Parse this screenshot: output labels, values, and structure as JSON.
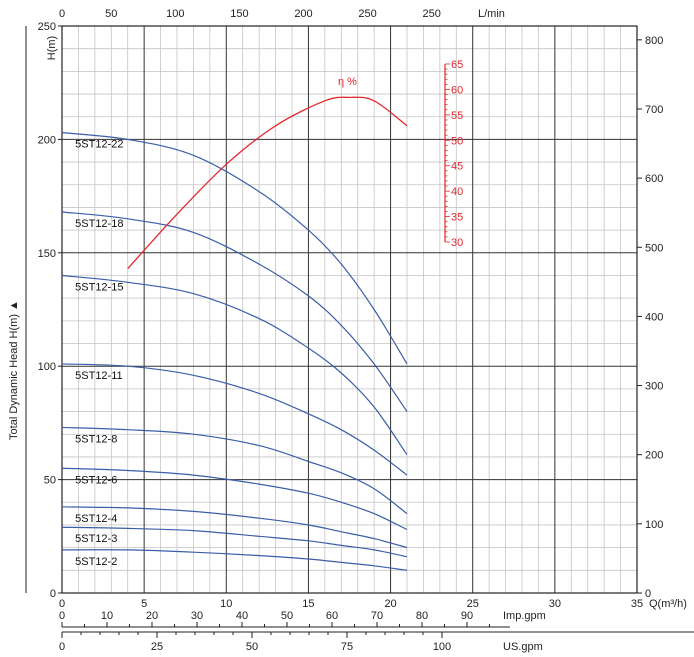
{
  "chart_data": {
    "type": "line",
    "axes": {
      "left_title": "Total Dynamic Head H(m) ▲",
      "left_unit": "H(m)",
      "left_ticks": [
        0,
        50,
        100,
        150,
        200,
        250
      ],
      "right_ticks": [
        0,
        100,
        200,
        300,
        400,
        500,
        600,
        700,
        800
      ],
      "top_ticks": [
        "0",
        "50",
        "100",
        "150",
        "200",
        "250",
        "250"
      ],
      "top_unit": "L/min",
      "bottom_ticks": [
        0,
        5,
        10,
        15,
        20,
        25,
        30,
        35
      ],
      "bottom_unit": "Q(m³/h)",
      "imp_ticks": [
        0,
        10,
        20,
        30,
        40,
        50,
        60,
        70,
        80,
        90
      ],
      "imp_unit": "Imp.gpm",
      "us_ticks": [
        0,
        25,
        50,
        75,
        100
      ],
      "us_unit": "US.gpm",
      "xlim": [
        0,
        35
      ],
      "ylim": [
        0,
        250
      ],
      "grid": true
    },
    "efficiency": {
      "label": "η %",
      "ticks": [
        30,
        35,
        40,
        45,
        50,
        55,
        60,
        65
      ],
      "points": [
        [
          4,
          143
        ],
        [
          7,
          167
        ],
        [
          10,
          189
        ],
        [
          13,
          206
        ],
        [
          16,
          217
        ],
        [
          17.5,
          218.5
        ],
        [
          19,
          217
        ],
        [
          21,
          206
        ]
      ]
    },
    "series": [
      {
        "name": "5ST12-22",
        "points": [
          [
            0,
            203
          ],
          [
            4,
            200
          ],
          [
            8,
            193
          ],
          [
            12,
            177
          ],
          [
            15,
            160
          ],
          [
            17,
            145
          ],
          [
            19,
            125
          ],
          [
            21,
            101
          ]
        ]
      },
      {
        "name": "5ST12-18",
        "points": [
          [
            0,
            168
          ],
          [
            4,
            165
          ],
          [
            8,
            159
          ],
          [
            12,
            145
          ],
          [
            15,
            131
          ],
          [
            17,
            118
          ],
          [
            19,
            101
          ],
          [
            21,
            80
          ]
        ]
      },
      {
        "name": "5ST12-15",
        "points": [
          [
            0,
            140
          ],
          [
            4,
            137
          ],
          [
            8,
            132
          ],
          [
            12,
            121
          ],
          [
            15,
            108
          ],
          [
            17,
            97
          ],
          [
            19,
            82
          ],
          [
            21,
            61
          ]
        ]
      },
      {
        "name": "5ST12-11",
        "points": [
          [
            0,
            101
          ],
          [
            4,
            100
          ],
          [
            8,
            96
          ],
          [
            12,
            88
          ],
          [
            15,
            79
          ],
          [
            17,
            72
          ],
          [
            19,
            63
          ],
          [
            21,
            52
          ]
        ]
      },
      {
        "name": "5ST12-8",
        "points": [
          [
            0,
            73
          ],
          [
            4,
            72
          ],
          [
            8,
            70
          ],
          [
            12,
            65
          ],
          [
            15,
            58
          ],
          [
            17,
            53
          ],
          [
            19,
            46
          ],
          [
            21,
            35
          ]
        ]
      },
      {
        "name": "5ST12-6",
        "points": [
          [
            0,
            55
          ],
          [
            4,
            54
          ],
          [
            8,
            52
          ],
          [
            12,
            48
          ],
          [
            15,
            44
          ],
          [
            17,
            40
          ],
          [
            19,
            35
          ],
          [
            21,
            28
          ]
        ]
      },
      {
        "name": "5ST12-4",
        "points": [
          [
            0,
            38
          ],
          [
            4,
            37.5
          ],
          [
            8,
            36
          ],
          [
            12,
            33
          ],
          [
            15,
            30
          ],
          [
            17,
            27
          ],
          [
            19,
            24
          ],
          [
            21,
            20
          ]
        ]
      },
      {
        "name": "5ST12-3",
        "points": [
          [
            0,
            29
          ],
          [
            4,
            28.5
          ],
          [
            8,
            27.5
          ],
          [
            12,
            25
          ],
          [
            15,
            23
          ],
          [
            17,
            21
          ],
          [
            19,
            19
          ],
          [
            21,
            16
          ]
        ]
      },
      {
        "name": "5ST12-2",
        "points": [
          [
            0,
            19
          ],
          [
            4,
            19
          ],
          [
            8,
            18
          ],
          [
            12,
            16.5
          ],
          [
            15,
            15
          ],
          [
            17,
            13.5
          ],
          [
            19,
            12
          ],
          [
            21,
            10
          ]
        ]
      }
    ]
  }
}
